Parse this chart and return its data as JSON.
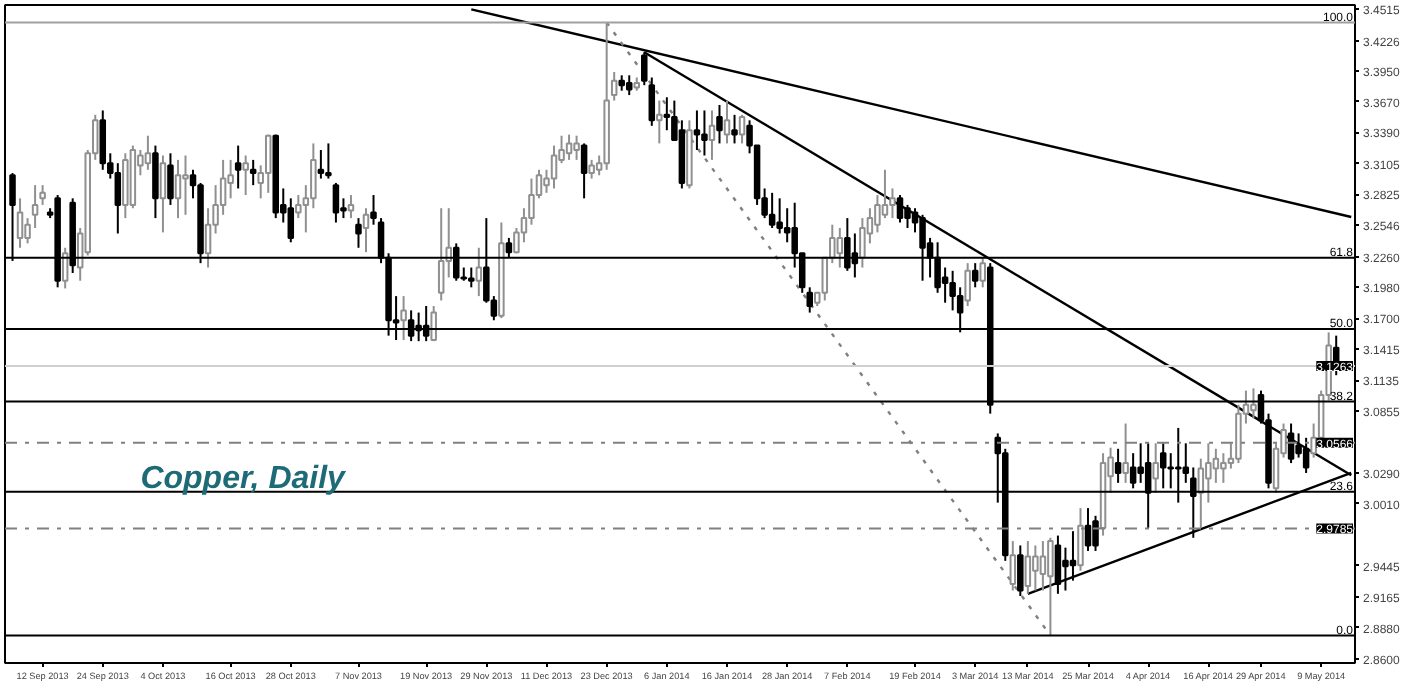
{
  "chart_data": {
    "type": "candlestick",
    "title": "Copper, Daily",
    "categories": [
      null,
      null,
      null,
      null,
      "12 Sep 2013",
      null,
      null,
      null,
      null,
      null,
      null,
      null,
      "24 Sep 2013",
      null,
      null,
      null,
      null,
      null,
      null,
      null,
      "4 Oct 2013",
      null,
      null,
      null,
      null,
      null,
      null,
      null,
      null,
      "16 Oct 2013",
      null,
      null,
      null,
      null,
      null,
      null,
      null,
      "28 Oct 2013",
      null,
      null,
      null,
      null,
      null,
      null,
      null,
      null,
      "7 Nov 2013",
      null,
      null,
      null,
      null,
      null,
      null,
      null,
      null,
      "19 Nov 2013",
      null,
      null,
      null,
      null,
      null,
      null,
      null,
      "29 Nov 2013",
      null,
      null,
      null,
      null,
      null,
      null,
      null,
      "11 Dec 2013",
      null,
      null,
      null,
      null,
      null,
      null,
      null,
      "23 Dec 2013",
      null,
      null,
      null,
      null,
      null,
      null,
      null,
      "6 Jan 2014",
      null,
      null,
      null,
      null,
      null,
      null,
      null,
      "16 Jan 2014",
      null,
      null,
      null,
      null,
      null,
      null,
      null,
      "28 Jan 2014",
      null,
      null,
      null,
      null,
      null,
      null,
      null,
      "7 Feb 2014",
      null,
      null,
      null,
      null,
      null,
      null,
      null,
      null,
      "19 Feb 2014",
      null,
      null,
      null,
      null,
      null,
      null,
      null,
      "3 Mar 2014",
      null,
      null,
      null,
      null,
      null,
      null,
      "13 Mar 2014",
      null,
      null,
      null,
      null,
      null,
      null,
      null,
      "25 Mar 2014",
      null,
      null,
      null,
      null,
      null,
      null,
      null,
      "4 Apr 2014",
      null,
      null,
      null,
      null,
      null,
      null,
      null,
      "16 Apr 2014",
      null,
      null,
      null,
      null,
      null,
      null,
      "29 Apr 2014",
      null,
      null,
      null,
      null,
      null,
      null,
      null,
      "9 May 2014",
      null,
      null,
      null,
      null
    ],
    "ohlc": [
      [
        3.3,
        3.302,
        3.222,
        3.273
      ],
      [
        3.243,
        3.279,
        3.234,
        3.266
      ],
      [
        3.243,
        3.261,
        3.238,
        3.255
      ],
      [
        3.264,
        3.291,
        3.252,
        3.273
      ],
      [
        3.279,
        3.291,
        3.273,
        3.284
      ],
      [
        3.266,
        3.27,
        3.261,
        3.264
      ],
      [
        3.279,
        3.282,
        3.198,
        3.204
      ],
      [
        3.204,
        3.234,
        3.197,
        3.229
      ],
      [
        3.275,
        3.279,
        3.211,
        3.218
      ],
      [
        3.216,
        3.252,
        3.204,
        3.247
      ],
      [
        3.23,
        3.323,
        3.227,
        3.32
      ],
      [
        3.32,
        3.355,
        3.314,
        3.35
      ],
      [
        3.35,
        3.359,
        3.305,
        3.311
      ],
      [
        3.311,
        3.32,
        3.297,
        3.302
      ],
      [
        3.302,
        3.311,
        3.247,
        3.273
      ],
      [
        3.273,
        3.32,
        3.261,
        3.314
      ],
      [
        3.273,
        3.327,
        3.27,
        3.323
      ],
      [
        3.309,
        3.323,
        3.3,
        3.318
      ],
      [
        3.311,
        3.336,
        3.305,
        3.32
      ],
      [
        3.32,
        3.327,
        3.261,
        3.279
      ],
      [
        3.279,
        3.318,
        3.248,
        3.311
      ],
      [
        3.309,
        3.32,
        3.273,
        3.279
      ],
      [
        3.279,
        3.314,
        3.261,
        3.3
      ],
      [
        3.297,
        3.318,
        3.264,
        3.3
      ],
      [
        3.3,
        3.305,
        3.279,
        3.291
      ],
      [
        3.291,
        3.293,
        3.22,
        3.229
      ],
      [
        3.229,
        3.27,
        3.216,
        3.255
      ],
      [
        3.255,
        3.291,
        3.247,
        3.273
      ],
      [
        3.273,
        3.314,
        3.264,
        3.297
      ],
      [
        3.293,
        3.314,
        3.279,
        3.3
      ],
      [
        3.311,
        3.327,
        3.288,
        3.305
      ],
      [
        3.305,
        3.318,
        3.282,
        3.311
      ],
      [
        3.305,
        3.314,
        3.291,
        3.302
      ],
      [
        3.293,
        3.309,
        3.279,
        3.302
      ],
      [
        3.302,
        3.337,
        3.284,
        3.336
      ],
      [
        3.336,
        3.337,
        3.261,
        3.266
      ],
      [
        3.273,
        3.288,
        3.257,
        3.266
      ],
      [
        3.27,
        3.279,
        3.239,
        3.243
      ],
      [
        3.266,
        3.282,
        3.261,
        3.273
      ],
      [
        3.273,
        3.291,
        3.248,
        3.279
      ],
      [
        3.279,
        3.329,
        3.27,
        3.314
      ],
      [
        3.305,
        3.323,
        3.297,
        3.302
      ],
      [
        3.302,
        3.329,
        3.297,
        3.3
      ],
      [
        3.291,
        3.293,
        3.257,
        3.266
      ],
      [
        3.27,
        3.279,
        3.261,
        3.268
      ],
      [
        3.268,
        3.282,
        3.261,
        3.273
      ],
      [
        3.255,
        3.261,
        3.234,
        3.247
      ],
      [
        3.252,
        3.27,
        3.23,
        3.264
      ],
      [
        3.266,
        3.282,
        3.255,
        3.261
      ],
      [
        3.257,
        3.261,
        3.22,
        3.225
      ],
      [
        3.225,
        3.229,
        3.154,
        3.168
      ],
      [
        3.168,
        3.19,
        3.15,
        3.166
      ],
      [
        3.168,
        3.19,
        3.15,
        3.177
      ],
      [
        3.168,
        3.177,
        3.149,
        3.154
      ],
      [
        3.163,
        3.175,
        3.149,
        3.159
      ],
      [
        3.163,
        3.181,
        3.149,
        3.154
      ],
      [
        3.15,
        3.181,
        3.149,
        3.175
      ],
      [
        3.193,
        3.27,
        3.186,
        3.222
      ],
      [
        3.222,
        3.27,
        3.207,
        3.234
      ],
      [
        3.234,
        3.238,
        3.204,
        3.207
      ],
      [
        3.207,
        3.216,
        3.204,
        3.206
      ],
      [
        3.206,
        3.216,
        3.198,
        3.204
      ],
      [
        3.204,
        3.234,
        3.19,
        3.216
      ],
      [
        3.216,
        3.261,
        3.184,
        3.186
      ],
      [
        3.186,
        3.19,
        3.168,
        3.172
      ],
      [
        3.172,
        3.257,
        3.17,
        3.238
      ],
      [
        3.238,
        3.243,
        3.225,
        3.23
      ],
      [
        3.23,
        3.252,
        3.229,
        3.248
      ],
      [
        3.248,
        3.27,
        3.239,
        3.261
      ],
      [
        3.261,
        3.297,
        3.255,
        3.282
      ],
      [
        3.282,
        3.305,
        3.279,
        3.3
      ],
      [
        3.291,
        3.305,
        3.284,
        3.297
      ],
      [
        3.297,
        3.327,
        3.288,
        3.318
      ],
      [
        3.314,
        3.336,
        3.311,
        3.323
      ],
      [
        3.32,
        3.337,
        3.314,
        3.329
      ],
      [
        3.323,
        3.336,
        3.314,
        3.329
      ],
      [
        3.327,
        3.329,
        3.279,
        3.302
      ],
      [
        3.302,
        3.314,
        3.297,
        3.309
      ],
      [
        3.305,
        3.318,
        3.3,
        3.311
      ],
      [
        3.311,
        3.439,
        3.305,
        3.368
      ],
      [
        3.373,
        3.394,
        3.368,
        3.386
      ],
      [
        3.386,
        3.391,
        3.377,
        3.382
      ],
      [
        3.384,
        3.391,
        3.373,
        3.378
      ],
      [
        3.38,
        3.389,
        3.377,
        3.384
      ],
      [
        3.409,
        3.412,
        3.382,
        3.386
      ],
      [
        3.382,
        3.389,
        3.345,
        3.35
      ],
      [
        3.35,
        3.368,
        3.329,
        3.355
      ],
      [
        3.355,
        3.371,
        3.341,
        3.353
      ],
      [
        3.353,
        3.368,
        3.332,
        3.332
      ],
      [
        3.341,
        3.35,
        3.288,
        3.293
      ],
      [
        3.291,
        3.35,
        3.288,
        3.341
      ],
      [
        3.341,
        3.359,
        3.323,
        3.337
      ],
      [
        3.337,
        3.359,
        3.318,
        3.332
      ],
      [
        3.332,
        3.359,
        3.314,
        3.345
      ],
      [
        3.353,
        3.364,
        3.329,
        3.341
      ],
      [
        3.337,
        3.368,
        3.329,
        3.35
      ],
      [
        3.341,
        3.355,
        3.329,
        3.337
      ],
      [
        3.337,
        3.355,
        3.329,
        3.353
      ],
      [
        3.345,
        3.35,
        3.32,
        3.327
      ],
      [
        3.327,
        3.327,
        3.273,
        3.279
      ],
      [
        3.279,
        3.288,
        3.261,
        3.264
      ],
      [
        3.264,
        3.284,
        3.252,
        3.255
      ],
      [
        3.257,
        3.279,
        3.247,
        3.252
      ],
      [
        3.252,
        3.27,
        3.239,
        3.248
      ],
      [
        3.252,
        3.275,
        3.216,
        3.229
      ],
      [
        3.229,
        3.229,
        3.193,
        3.198
      ],
      [
        3.193,
        3.198,
        3.175,
        3.181
      ],
      [
        3.184,
        3.193,
        3.181,
        3.193
      ],
      [
        3.193,
        3.225,
        3.186,
        3.225
      ],
      [
        3.225,
        3.255,
        3.22,
        3.243
      ],
      [
        3.229,
        3.252,
        3.216,
        3.243
      ],
      [
        3.243,
        3.261,
        3.213,
        3.216
      ],
      [
        3.229,
        3.247,
        3.207,
        3.22
      ],
      [
        3.225,
        3.261,
        3.216,
        3.252
      ],
      [
        3.247,
        3.27,
        3.238,
        3.261
      ],
      [
        3.255,
        3.282,
        3.248,
        3.273
      ],
      [
        3.264,
        3.305,
        3.261,
        3.273
      ],
      [
        3.273,
        3.288,
        3.261,
        3.279
      ],
      [
        3.279,
        3.282,
        3.257,
        3.261
      ],
      [
        3.27,
        3.273,
        3.252,
        3.261
      ],
      [
        3.266,
        3.27,
        3.248,
        3.257
      ],
      [
        3.261,
        3.264,
        3.204,
        3.234
      ],
      [
        3.238,
        3.243,
        3.207,
        3.225
      ],
      [
        3.225,
        3.239,
        3.193,
        3.198
      ],
      [
        3.207,
        3.216,
        3.184,
        3.202
      ],
      [
        3.202,
        3.213,
        3.177,
        3.19
      ],
      [
        3.19,
        3.198,
        3.157,
        3.175
      ],
      [
        3.186,
        3.22,
        3.181,
        3.213
      ],
      [
        3.213,
        3.22,
        3.198,
        3.204
      ],
      [
        3.204,
        3.225,
        3.198,
        3.22
      ],
      [
        3.216,
        3.22,
        3.083,
        3.091
      ],
      [
        3.061,
        3.065,
        3.002,
        3.047
      ],
      [
        3.047,
        3.051,
        2.949,
        2.954
      ],
      [
        2.928,
        2.967,
        2.922,
        2.954
      ],
      [
        2.954,
        2.963,
        2.917,
        2.922
      ],
      [
        2.926,
        2.967,
        2.919,
        2.953
      ],
      [
        2.94,
        2.963,
        2.922,
        2.953
      ],
      [
        2.937,
        2.967,
        2.922,
        2.953
      ],
      [
        2.935,
        2.97,
        2.881,
        2.967
      ],
      [
        2.963,
        2.972,
        2.919,
        2.928
      ],
      [
        2.949,
        2.961,
        2.922,
        2.944
      ],
      [
        2.949,
        2.976,
        2.931,
        2.945
      ],
      [
        2.945,
        2.997,
        2.94,
        2.981
      ],
      [
        2.981,
        2.997,
        2.958,
        2.963
      ],
      [
        2.985,
        2.99,
        2.958,
        2.963
      ],
      [
        2.979,
        3.047,
        2.972,
        3.038
      ],
      [
        3.026,
        3.052,
        3.011,
        3.043
      ],
      [
        3.038,
        3.051,
        3.02,
        3.029
      ],
      [
        3.029,
        3.074,
        3.02,
        3.038
      ],
      [
        3.034,
        3.047,
        3.015,
        3.02
      ],
      [
        3.034,
        3.056,
        3.02,
        3.029
      ],
      [
        3.038,
        3.056,
        2.979,
        3.011
      ],
      [
        3.024,
        3.056,
        3.011,
        3.038
      ],
      [
        3.047,
        3.056,
        3.015,
        3.034
      ],
      [
        3.034,
        3.047,
        3.015,
        3.033
      ],
      [
        3.034,
        3.07,
        3.002,
        3.033
      ],
      [
        3.034,
        3.056,
        3.02,
        3.029
      ],
      [
        3.024,
        3.034,
        2.97,
        3.008
      ],
      [
        3.011,
        3.042,
        2.979,
        3.033
      ],
      [
        3.024,
        3.056,
        3.002,
        3.038
      ],
      [
        3.033,
        3.051,
        3.02,
        3.042
      ],
      [
        3.033,
        3.047,
        3.02,
        3.038
      ],
      [
        3.038,
        3.056,
        3.033,
        3.042
      ],
      [
        3.042,
        3.091,
        3.038,
        3.083
      ],
      [
        3.083,
        3.104,
        3.074,
        3.091
      ],
      [
        3.086,
        3.106,
        3.079,
        3.091
      ],
      [
        3.1,
        3.104,
        3.074,
        3.077
      ],
      [
        3.077,
        3.083,
        3.015,
        3.02
      ],
      [
        3.015,
        3.056,
        3.011,
        3.051
      ],
      [
        3.047,
        3.074,
        3.043,
        3.068
      ],
      [
        3.065,
        3.074,
        3.038,
        3.042
      ],
      [
        3.054,
        3.065,
        3.043,
        3.047
      ],
      [
        3.051,
        3.061,
        3.029,
        3.034
      ],
      [
        3.047,
        3.074,
        3.043,
        3.061
      ],
      [
        3.061,
        3.104,
        3.058,
        3.1
      ],
      [
        3.1,
        3.157,
        3.095,
        3.145
      ],
      [
        3.143,
        3.154,
        3.118,
        3.126
      ],
      null,
      null
    ],
    "series": [
      {
        "type": "line",
        "values": [
          null,
          null,
          null,
          null,
          null,
          null,
          null,
          null,
          null,
          null,
          null,
          null,
          null,
          null,
          null,
          null,
          null,
          null,
          null,
          null,
          null,
          null,
          null,
          null,
          null,
          null,
          null,
          null,
          null,
          null,
          null,
          null,
          null,
          null,
          null,
          null,
          null,
          null,
          null,
          null,
          null,
          null,
          null,
          null,
          null,
          null,
          null,
          null,
          null,
          null,
          null,
          null,
          null,
          null,
          null,
          null,
          null,
          null,
          null,
          null,
          null,
          3.451,
          null,
          null,
          null,
          null,
          null,
          null,
          null,
          null,
          null,
          null,
          null,
          null,
          null,
          null,
          null,
          null,
          null,
          null,
          null,
          null,
          null,
          null,
          null,
          null,
          null,
          null,
          null,
          null,
          null,
          null,
          null,
          null,
          null,
          null,
          null,
          null,
          null,
          null,
          null,
          null,
          null,
          null,
          null,
          null,
          null,
          null,
          null,
          null,
          null,
          null,
          null,
          null,
          null,
          null,
          null,
          null,
          null,
          null,
          null,
          null,
          null,
          null,
          null,
          null,
          null,
          null,
          null,
          null,
          null,
          null,
          null,
          null,
          null,
          null,
          null,
          null,
          null,
          null,
          null,
          null,
          null,
          null,
          null,
          null,
          null,
          null,
          null,
          null,
          null,
          null,
          null,
          null,
          null,
          null,
          null,
          null,
          null,
          null,
          null,
          null,
          null,
          null,
          null,
          null,
          null,
          null,
          null,
          null,
          null,
          null,
          null,
          null,
          null,
          null,
          null,
          null,
          3.262
        ],
        "color": "#000000"
      },
      {
        "type": "line",
        "values": [
          null,
          null,
          null,
          null,
          null,
          null,
          null,
          null,
          null,
          null,
          null,
          null,
          null,
          null,
          null,
          null,
          null,
          null,
          null,
          null,
          null,
          null,
          null,
          null,
          null,
          null,
          null,
          null,
          null,
          null,
          null,
          null,
          null,
          null,
          null,
          null,
          null,
          null,
          null,
          null,
          null,
          null,
          null,
          null,
          null,
          null,
          null,
          null,
          null,
          null,
          null,
          null,
          null,
          null,
          null,
          null,
          null,
          null,
          null,
          null,
          null,
          null,
          null,
          null,
          null,
          null,
          null,
          null,
          null,
          null,
          null,
          null,
          null,
          null,
          null,
          null,
          null,
          null,
          null,
          null,
          null,
          null,
          null,
          null,
          3.412,
          null,
          null,
          null,
          null,
          null,
          null,
          null,
          null,
          null,
          null,
          null,
          null,
          null,
          null,
          null,
          null,
          null,
          null,
          null,
          null,
          null,
          null,
          null,
          null,
          null,
          null,
          null,
          null,
          null,
          null,
          null,
          null,
          null,
          null,
          null,
          null,
          null,
          null,
          null,
          null,
          null,
          null,
          null,
          null,
          null,
          null,
          null,
          null,
          null,
          null,
          null,
          null,
          null,
          null,
          null,
          null,
          null,
          null,
          null,
          null,
          null,
          null,
          null,
          null,
          null,
          null,
          null,
          null,
          null,
          null,
          null,
          null,
          null,
          null,
          null,
          null,
          null,
          null,
          null,
          null,
          null,
          null,
          null,
          null,
          null,
          null,
          null,
          null,
          null,
          null,
          null,
          null,
          null,
          3.027
        ],
        "color": "#000000"
      },
      {
        "type": "line",
        "values": [
          null,
          null,
          null,
          null,
          null,
          null,
          null,
          null,
          null,
          null,
          null,
          null,
          null,
          null,
          null,
          null,
          null,
          null,
          null,
          null,
          null,
          null,
          null,
          null,
          null,
          null,
          null,
          null,
          null,
          null,
          null,
          null,
          null,
          null,
          null,
          null,
          null,
          null,
          null,
          null,
          null,
          null,
          null,
          null,
          null,
          null,
          null,
          null,
          null,
          null,
          null,
          null,
          null,
          null,
          null,
          null,
          null,
          null,
          null,
          null,
          null,
          null,
          null,
          null,
          null,
          null,
          null,
          null,
          null,
          null,
          null,
          null,
          null,
          null,
          null,
          null,
          null,
          null,
          null,
          null,
          null,
          null,
          null,
          null,
          null,
          null,
          null,
          null,
          null,
          null,
          null,
          null,
          null,
          null,
          null,
          null,
          null,
          null,
          null,
          null,
          null,
          null,
          null,
          null,
          null,
          null,
          null,
          null,
          null,
          null,
          null,
          null,
          null,
          null,
          null,
          null,
          null,
          null,
          null,
          null,
          null,
          null,
          null,
          null,
          null,
          null,
          null,
          null,
          null,
          null,
          null,
          null,
          null,
          null,
          null,
          2.919,
          null,
          null,
          null,
          null,
          null,
          null,
          null,
          null,
          null,
          null,
          null,
          null,
          null,
          null,
          null,
          null,
          null,
          null,
          null,
          null,
          null,
          null,
          null,
          null,
          null,
          null,
          null,
          null,
          null,
          null,
          null,
          null,
          null,
          null,
          null,
          null,
          null,
          null,
          null,
          null,
          null,
          null,
          3.029
        ],
        "color": "#000000"
      },
      {
        "type": "line",
        "values": [
          null,
          null,
          null,
          null,
          null,
          null,
          null,
          null,
          null,
          null,
          null,
          null,
          null,
          null,
          null,
          null,
          null,
          null,
          null,
          null,
          null,
          null,
          null,
          null,
          null,
          null,
          null,
          null,
          null,
          null,
          null,
          null,
          null,
          null,
          null,
          null,
          null,
          null,
          null,
          null,
          null,
          null,
          null,
          null,
          null,
          null,
          null,
          null,
          null,
          null,
          null,
          null,
          null,
          null,
          null,
          null,
          null,
          null,
          null,
          null,
          null,
          null,
          null,
          null,
          null,
          null,
          null,
          null,
          null,
          null,
          null,
          null,
          null,
          null,
          null,
          null,
          null,
          null,
          null,
          3.439,
          null,
          null,
          null,
          null,
          null,
          null,
          null,
          null,
          null,
          null,
          null,
          null,
          null,
          null,
          null,
          null,
          null,
          null,
          null,
          null,
          null,
          null,
          null,
          null,
          null,
          null,
          null,
          null,
          null,
          null,
          null,
          null,
          null,
          null,
          null,
          null,
          null,
          null,
          null,
          null,
          null,
          null,
          null,
          null,
          null,
          null,
          null,
          null,
          null,
          null,
          null,
          null,
          null,
          null,
          null,
          null,
          null,
          null,
          2.881,
          null,
          null,
          null,
          null,
          null,
          null,
          null,
          null,
          null,
          null,
          null,
          null,
          null,
          null,
          null,
          null,
          null,
          null,
          null,
          null,
          null,
          null,
          null,
          null,
          null,
          null,
          null,
          null,
          null,
          null,
          null,
          null,
          null,
          null,
          null,
          null,
          null,
          null,
          null,
          null
        ],
        "color": "#808080",
        "line_style": "dotted"
      }
    ],
    "ylim": [
      2.856,
      3.455
    ],
    "yticks": [
      3.4515,
      3.4226,
      {
        "value": 3.395,
        "label": "3.3950"
      },
      {
        "value": 3.367,
        "label": "3.3670"
      },
      {
        "value": 3.339,
        "label": "3.3390"
      },
      3.3105,
      3.2825,
      3.2546,
      {
        "value": 3.226,
        "label": "3.2260"
      },
      {
        "value": 3.198,
        "label": "3.1980"
      },
      {
        "value": 3.17,
        "label": "3.1700"
      },
      3.1415,
      3.1135,
      3.0855,
      {
        "value": 3.029,
        "label": "3.0290"
      },
      {
        "value": 3.001,
        "label": "3.0010"
      },
      2.9445,
      2.9165,
      {
        "value": 2.888,
        "label": "2.8880"
      },
      {
        "value": 2.86,
        "label": "2.8600"
      }
    ],
    "ref_lines": [
      {
        "axis": "y",
        "value": 3.439,
        "color": "#a0a0a0"
      },
      {
        "axis": "y",
        "value": 3.225,
        "color": "#000000"
      },
      {
        "axis": "y",
        "value": 3.16,
        "color": "#000000"
      },
      {
        "axis": "y",
        "value": 3.094,
        "color": "#000000"
      },
      {
        "axis": "y",
        "value": 3.012,
        "color": "#000000"
      },
      {
        "axis": "y",
        "value": 2.881,
        "color": "#000000"
      },
      {
        "axis": "y",
        "value": 3.1263,
        "label": "3.1263",
        "color": "#d0d0d0",
        "line_style": "solid"
      },
      {
        "axis": "y",
        "value": 3.0566,
        "label": "3.0566",
        "color": "#808080",
        "line_style": "dashdot"
      },
      {
        "axis": "y",
        "value": 2.9785,
        "label": "2.9785",
        "color": "#808080",
        "line_style": "dashdot"
      }
    ],
    "annotations": [
      {
        "text": "100.0",
        "y": 3.439
      },
      {
        "text": "61.8",
        "y": 3.225
      },
      {
        "text": "50.0",
        "y": 3.16
      },
      {
        "text": "38.2",
        "y": 3.094
      },
      {
        "text": "23.6",
        "y": 3.012
      },
      {
        "text": "0.0",
        "y": 2.881
      }
    ],
    "grid": false
  }
}
